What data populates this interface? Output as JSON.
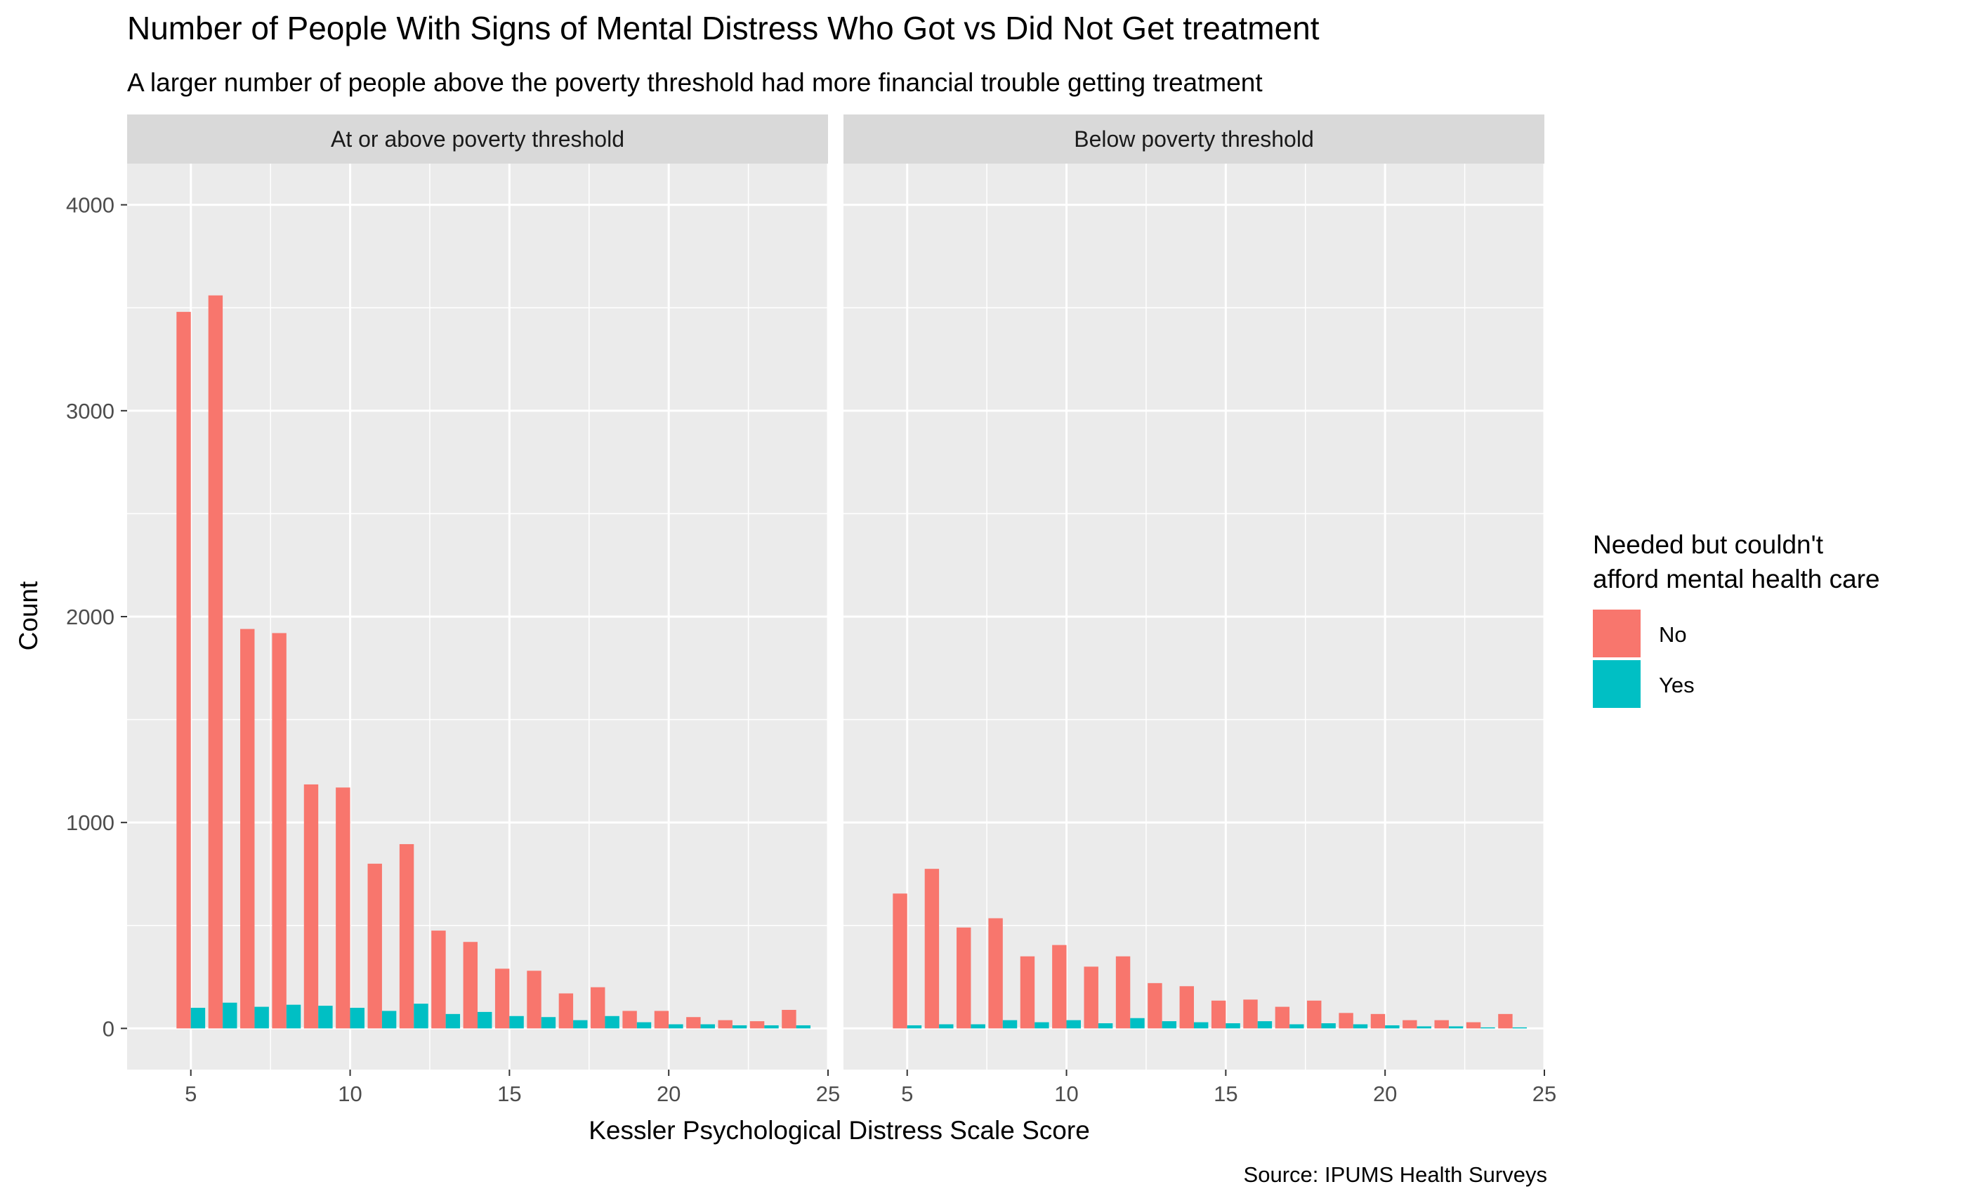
{
  "chart_data": {
    "type": "bar",
    "title": "Number of People With Signs of Mental Distress Who Got vs Did Not Get treatment",
    "subtitle": "A larger number of people above the poverty threshold had more financial trouble getting treatment",
    "xlabel": "Kessler Psychological Distress Scale Score",
    "ylabel": "Count",
    "caption": "Source: IPUMS Health Surveys",
    "xlim": [
      3,
      25
    ],
    "ylim": [
      -200,
      4200
    ],
    "x_ticks": [
      5,
      10,
      15,
      20,
      25
    ],
    "y_ticks": [
      0,
      1000,
      2000,
      3000,
      4000
    ],
    "grid": true,
    "legend": {
      "title_line1": "Needed but couldn't",
      "title_line2": "afford mental health care",
      "position": "right",
      "entries": [
        {
          "label": "No",
          "color": "#F8766D"
        },
        {
          "label": "Yes",
          "color": "#00BFC4"
        }
      ]
    },
    "colors": {
      "No": "#F8766D",
      "Yes": "#00BFC4",
      "panel_bg": "#EBEBEB",
      "strip_bg": "#D9D9D9",
      "grid": "#FFFFFF"
    },
    "x": [
      5,
      6,
      7,
      8,
      9,
      10,
      11,
      12,
      13,
      14,
      15,
      16,
      17,
      18,
      19,
      20,
      21,
      22,
      23,
      24
    ],
    "panels": [
      {
        "label": "At or above poverty threshold",
        "series": [
          {
            "name": "No",
            "values": [
              3480,
              3560,
              1940,
              1920,
              1185,
              1170,
              800,
              895,
              475,
              420,
              290,
              280,
              170,
              200,
              85,
              85,
              55,
              40,
              35,
              90
            ]
          },
          {
            "name": "Yes",
            "values": [
              100,
              125,
              105,
              115,
              110,
              100,
              85,
              120,
              70,
              80,
              60,
              55,
              40,
              60,
              30,
              20,
              20,
              15,
              15,
              15
            ]
          }
        ]
      },
      {
        "label": "Below poverty threshold",
        "series": [
          {
            "name": "No",
            "values": [
              655,
              775,
              490,
              535,
              350,
              405,
              300,
              350,
              220,
              205,
              135,
              140,
              105,
              135,
              75,
              70,
              40,
              40,
              30,
              70
            ]
          },
          {
            "name": "Yes",
            "values": [
              15,
              20,
              20,
              40,
              30,
              40,
              25,
              50,
              35,
              30,
              25,
              35,
              20,
              25,
              20,
              15,
              10,
              10,
              5,
              5
            ]
          }
        ]
      }
    ]
  }
}
